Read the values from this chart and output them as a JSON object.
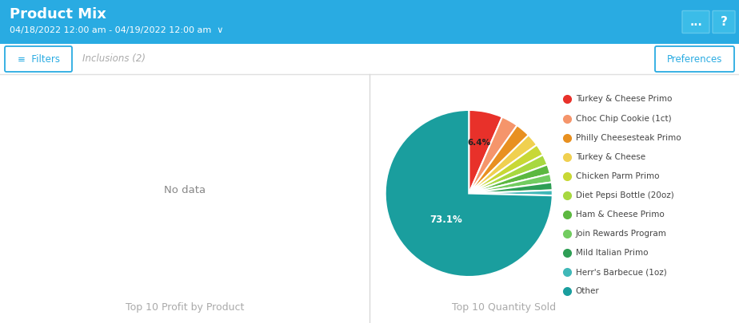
{
  "title": "Product Mix",
  "subtitle": "04/18/2022 12:00 am - 04/19/2022 12:00 am  ∨",
  "header_bg": "#29abe2",
  "header_text_color": "#ffffff",
  "body_bg": "#ffffff",
  "filter_text": "≡  Filters",
  "inclusions_text": "Inclusions (2)",
  "preferences_text": "Preferences",
  "left_panel_no_data": "No data",
  "left_panel_title": "Top 10 Profit by Product",
  "right_panel_title": "Top 10 Quantity Sold",
  "pie_labels": [
    "Turkey & Cheese Primo",
    "Choc Chip Cookie (1ct)",
    "Philly Cheesesteak Primo",
    "Turkey & Cheese",
    "Chicken Parm Primo",
    "Diet Pepsi Bottle (20oz)",
    "Ham & Cheese Primo",
    "Join Rewards Program",
    "Mild Italian Primo",
    "Herr's Barbecue (1oz)",
    "Other"
  ],
  "pie_values": [
    6.4,
    3.2,
    2.8,
    2.4,
    2.2,
    2.0,
    1.8,
    1.6,
    1.5,
    1.0,
    73.1
  ],
  "pie_colors": [
    "#e8312a",
    "#f5956b",
    "#e89020",
    "#f0d050",
    "#c8d835",
    "#a8d840",
    "#5cb840",
    "#72cc60",
    "#2e9e55",
    "#40b8b8",
    "#1a9e9e"
  ],
  "divider_color": "#d8d8d8",
  "panel_title_color": "#aaaaaa",
  "no_data_color": "#888888",
  "toolbar_border": "#e0e0e0",
  "filter_border_color": "#29abe2",
  "filter_text_color": "#29abe2",
  "icon_box_color": "#3bbce8",
  "dots_icon_color": "#cce8f8"
}
